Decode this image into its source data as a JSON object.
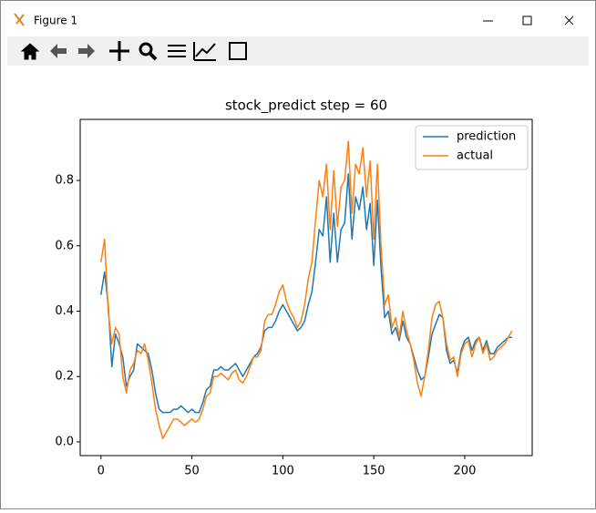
{
  "window": {
    "title": "Figure 1"
  },
  "chart_data": {
    "type": "line",
    "title": "stock_predict step = 60",
    "x": [
      0,
      2,
      4,
      6,
      8,
      10,
      12,
      14,
      16,
      18,
      20,
      22,
      24,
      26,
      28,
      30,
      32,
      34,
      36,
      38,
      40,
      42,
      44,
      46,
      48,
      50,
      52,
      54,
      56,
      58,
      60,
      62,
      64,
      66,
      68,
      70,
      72,
      74,
      76,
      78,
      80,
      82,
      84,
      86,
      88,
      90,
      92,
      94,
      96,
      98,
      100,
      102,
      104,
      106,
      108,
      110,
      112,
      114,
      116,
      118,
      120,
      122,
      124,
      126,
      128,
      130,
      132,
      134,
      136,
      138,
      140,
      142,
      144,
      146,
      148,
      150,
      152,
      154,
      156,
      158,
      160,
      162,
      164,
      166,
      168,
      170,
      172,
      174,
      176,
      178,
      180,
      182,
      184,
      186,
      188,
      190,
      192,
      194,
      196,
      198,
      200,
      202,
      204,
      206,
      208,
      210,
      212,
      214,
      216,
      218,
      220,
      222,
      224,
      226
    ],
    "series": [
      {
        "name": "prediction",
        "color": "#1f77b4",
        "values": [
          0.45,
          0.52,
          0.42,
          0.23,
          0.33,
          0.3,
          0.26,
          0.17,
          0.2,
          0.22,
          0.3,
          0.29,
          0.28,
          0.27,
          0.22,
          0.15,
          0.1,
          0.09,
          0.09,
          0.09,
          0.1,
          0.1,
          0.11,
          0.1,
          0.09,
          0.1,
          0.09,
          0.09,
          0.12,
          0.16,
          0.17,
          0.22,
          0.22,
          0.23,
          0.22,
          0.22,
          0.23,
          0.24,
          0.22,
          0.2,
          0.22,
          0.24,
          0.26,
          0.27,
          0.29,
          0.34,
          0.35,
          0.35,
          0.37,
          0.4,
          0.42,
          0.4,
          0.38,
          0.36,
          0.34,
          0.35,
          0.37,
          0.42,
          0.46,
          0.55,
          0.65,
          0.63,
          0.75,
          0.55,
          0.7,
          0.55,
          0.65,
          0.67,
          0.82,
          0.62,
          0.75,
          0.71,
          0.78,
          0.65,
          0.73,
          0.54,
          0.74,
          0.53,
          0.38,
          0.4,
          0.33,
          0.35,
          0.31,
          0.37,
          0.32,
          0.3,
          0.26,
          0.22,
          0.19,
          0.2,
          0.26,
          0.33,
          0.36,
          0.39,
          0.38,
          0.28,
          0.24,
          0.25,
          0.21,
          0.28,
          0.31,
          0.32,
          0.28,
          0.31,
          0.32,
          0.28,
          0.31,
          0.27,
          0.27,
          0.29,
          0.3,
          0.31,
          0.32,
          0.32
        ]
      },
      {
        "name": "actual",
        "color": "#ff7f0e",
        "values": [
          0.55,
          0.62,
          0.4,
          0.3,
          0.35,
          0.33,
          0.2,
          0.15,
          0.22,
          0.24,
          0.28,
          0.27,
          0.3,
          0.25,
          0.18,
          0.1,
          0.05,
          0.01,
          0.03,
          0.05,
          0.07,
          0.07,
          0.06,
          0.05,
          0.06,
          0.07,
          0.06,
          0.07,
          0.1,
          0.14,
          0.15,
          0.2,
          0.2,
          0.21,
          0.2,
          0.19,
          0.21,
          0.22,
          0.19,
          0.18,
          0.2,
          0.23,
          0.26,
          0.26,
          0.28,
          0.37,
          0.39,
          0.39,
          0.42,
          0.46,
          0.48,
          0.43,
          0.4,
          0.38,
          0.35,
          0.37,
          0.42,
          0.5,
          0.55,
          0.68,
          0.8,
          0.75,
          0.85,
          0.65,
          0.83,
          0.66,
          0.78,
          0.8,
          0.92,
          0.7,
          0.85,
          0.82,
          0.9,
          0.75,
          0.86,
          0.62,
          0.85,
          0.6,
          0.42,
          0.45,
          0.35,
          0.38,
          0.32,
          0.4,
          0.34,
          0.3,
          0.25,
          0.18,
          0.14,
          0.2,
          0.28,
          0.38,
          0.42,
          0.43,
          0.38,
          0.3,
          0.25,
          0.26,
          0.2,
          0.27,
          0.3,
          0.31,
          0.26,
          0.3,
          0.32,
          0.27,
          0.3,
          0.25,
          0.26,
          0.28,
          0.29,
          0.3,
          0.32,
          0.34
        ]
      }
    ],
    "xlim": [
      -11.4,
      237.1
    ],
    "xticks": [
      0,
      50,
      100,
      150,
      200
    ],
    "ylim": [
      -0.042,
      0.987
    ],
    "yticks": [
      {
        "value": 0,
        "label": "0.0"
      },
      0.2,
      0.4,
      0.6,
      0.8
    ],
    "legend": "upper right"
  }
}
